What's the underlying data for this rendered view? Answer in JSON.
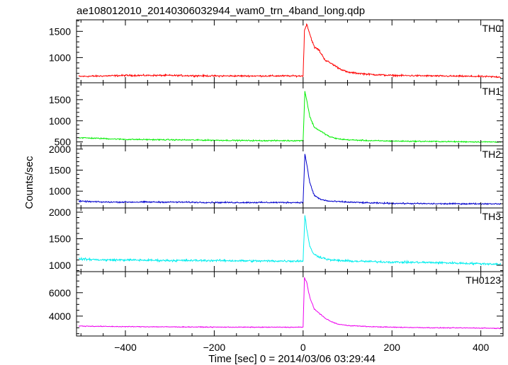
{
  "chart_data": {
    "type": "line",
    "title": "ae108012010_20140306032944_wam0_trn_4band_long.qdp",
    "xlabel": "Time [sec] 0 = 2014/03/06 03:29:44",
    "ylabel": "Counts/sec",
    "xlim": [
      -510,
      450
    ],
    "x_ticks": [
      -400,
      -200,
      0,
      200,
      400
    ],
    "x_tick_labels": [
      "−400",
      "−200",
      "0",
      "200",
      "400"
    ],
    "panels": [
      {
        "name": "TH0",
        "color": "#ff0000",
        "ylim": [
          520,
          1720
        ],
        "y_ticks": [
          1000,
          1500
        ],
        "x": [
          -505,
          -450,
          -400,
          -300,
          -200,
          -100,
          -20,
          0,
          3,
          8,
          15,
          25,
          35,
          50,
          65,
          80,
          100,
          150,
          200,
          300,
          400,
          445
        ],
        "y": [
          640,
          650,
          660,
          660,
          650,
          650,
          650,
          650,
          1500,
          1650,
          1450,
          1200,
          1150,
          950,
          880,
          800,
          720,
          680,
          660,
          650,
          640,
          630
        ]
      },
      {
        "name": "TH1",
        "color": "#00ee00",
        "ylim": [
          410,
          1900
        ],
        "y_ticks": [
          500,
          1000,
          1500
        ],
        "x": [
          -505,
          -450,
          -400,
          -300,
          -200,
          -100,
          -20,
          0,
          4,
          8,
          15,
          25,
          40,
          60,
          80,
          100,
          150,
          200,
          300,
          400,
          445
        ],
        "y": [
          600,
          580,
          560,
          550,
          540,
          530,
          530,
          530,
          1700,
          1500,
          1100,
          850,
          750,
          620,
          570,
          550,
          530,
          520,
          510,
          500,
          500
        ]
      },
      {
        "name": "TH2",
        "color": "#0000cc",
        "ylim": [
          600,
          2080
        ],
        "y_ticks": [
          1000,
          1500,
          2000
        ],
        "x": [
          -505,
          -450,
          -400,
          -300,
          -200,
          -100,
          -20,
          0,
          4,
          8,
          15,
          25,
          40,
          60,
          100,
          150,
          200,
          300,
          400,
          445
        ],
        "y": [
          760,
          740,
          740,
          740,
          730,
          730,
          730,
          730,
          1900,
          1650,
          1200,
          900,
          800,
          760,
          740,
          720,
          710,
          700,
          700,
          700
        ]
      },
      {
        "name": "TH3",
        "color": "#00eeee",
        "ylim": [
          880,
          2080
        ],
        "y_ticks": [
          1000,
          1500,
          2000
        ],
        "x": [
          -505,
          -450,
          -400,
          -300,
          -200,
          -100,
          -20,
          0,
          4,
          8,
          15,
          25,
          40,
          60,
          100,
          150,
          200,
          300,
          400,
          445
        ],
        "y": [
          1120,
          1100,
          1100,
          1090,
          1090,
          1080,
          1080,
          1080,
          1950,
          1700,
          1350,
          1200,
          1150,
          1100,
          1080,
          1070,
          1060,
          1050,
          1030,
          1020
        ]
      },
      {
        "name": "TH0123",
        "color": "#ee00ee",
        "ylim": [
          2300,
          7800
        ],
        "y_ticks": [
          4000,
          6000
        ],
        "x": [
          -505,
          -450,
          -400,
          -300,
          -200,
          -100,
          -20,
          0,
          3,
          8,
          15,
          25,
          35,
          50,
          65,
          80,
          100,
          150,
          200,
          300,
          400,
          445
        ],
        "y": [
          3150,
          3120,
          3100,
          3080,
          3060,
          3050,
          3050,
          3050,
          7300,
          6900,
          5600,
          4600,
          4300,
          3800,
          3500,
          3300,
          3200,
          3100,
          3050,
          3000,
          2980,
          2950
        ]
      }
    ]
  }
}
